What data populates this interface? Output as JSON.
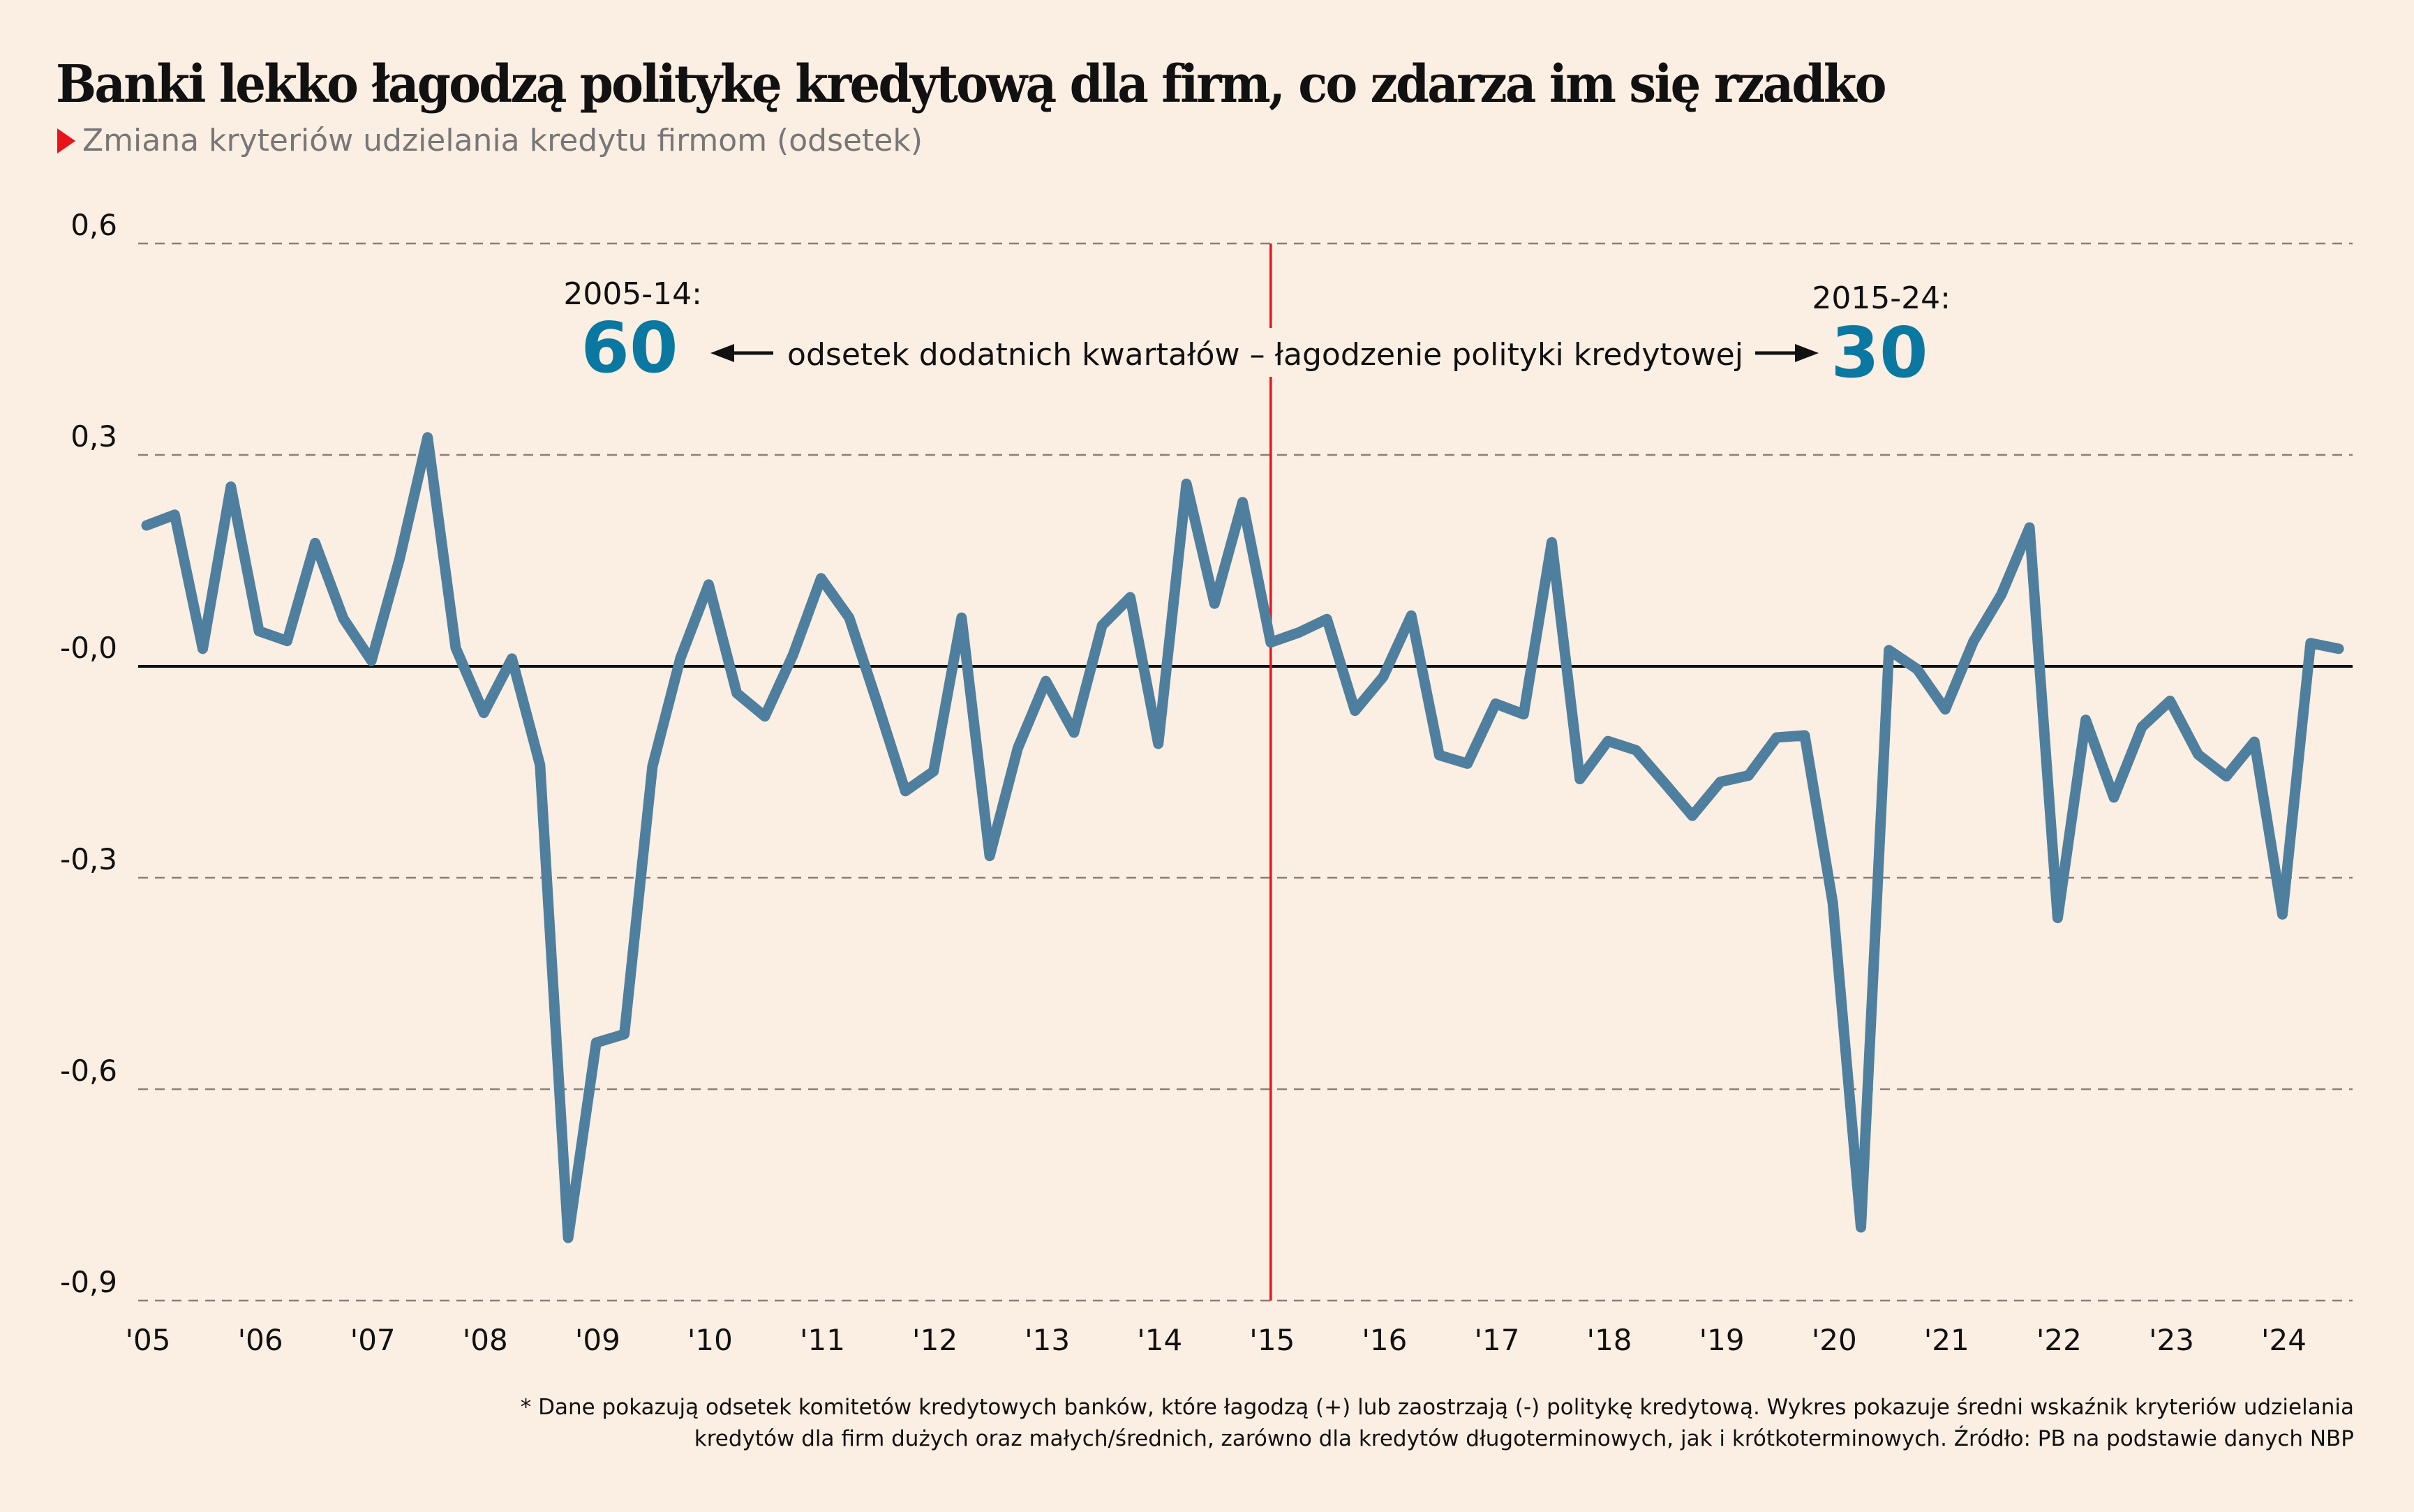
{
  "header": {
    "title": "Banki lekko łagodzą politykę kredytową dla firm, co zdarza im się rzadko",
    "subtitle": "Zmiana kryteriów udzielania kredytu firmom (odsetek)",
    "subtitle_marker_icon": "red-triangle-icon"
  },
  "annotations": {
    "left_period": "2005-14:",
    "left_value": "60",
    "right_period": "2015-24:",
    "right_value": "30",
    "middle_text": "odsetek dodatnich kwartałów – łagodzenie polityki kredytowej",
    "left_arrow_icon": "arrow-left-icon",
    "right_arrow_icon": "arrow-right-icon",
    "divider_at": "'15"
  },
  "footnote": {
    "line1": "* Dane pokazują odsetek komitetów kredytowych banków, które łagodzą (+) lub zaostrzają (-) politykę kredytową. Wykres pokazuje średni wskaźnik kryteriów udzielania",
    "line2": "kredytów dla firm dużych oraz małych/średnich, zarówno dla kredytów długoterminowych, jak i krótkoterminowych. Źródło: PB na podstawie danych NBP"
  },
  "colors": {
    "background": "#fbeee2",
    "line": "#4f7f9e",
    "accent_number": "#0a78a0",
    "divider": "#e8141a",
    "zero_line": "#111111",
    "grid": "#8a7f77"
  },
  "chart_data": {
    "type": "line",
    "title": "Banki lekko łagodzą politykę kredytową dla firm, co zdarza im się rzadko",
    "subtitle": "Zmiana kryteriów udzielania kredytu firmom (odsetek)",
    "xlabel": "",
    "ylabel": "",
    "frequency": "quarterly",
    "x_start": "2005 Q1",
    "x_end": "2024 Q3",
    "ylim": [
      -0.9,
      0.6
    ],
    "yticks": [
      0.6,
      0.3,
      0.0,
      -0.3,
      -0.6,
      -0.9
    ],
    "ytick_labels": [
      "0,6",
      "0,3",
      "-0,0",
      "-0,3",
      "-0,6",
      "-0,9"
    ],
    "xtick_labels": [
      "'05",
      "'06",
      "'07",
      "'08",
      "'09",
      "'10",
      "'11",
      "'12",
      "'13",
      "'14",
      "'15",
      "'16",
      "'17",
      "'18",
      "'19",
      "'20",
      "'21",
      "'22",
      "'23",
      "'24"
    ],
    "grid": "horizontal dashed",
    "legend": "none",
    "series": [
      {
        "name": "Zmiana kryteriów udzielania kredytu firmom",
        "values": [
          0.2,
          0.215,
          0.025,
          0.255,
          0.05,
          0.036,
          0.175,
          0.068,
          0.008,
          0.152,
          0.325,
          0.026,
          -0.066,
          0.011,
          -0.14,
          -0.811,
          -0.534,
          -0.522,
          -0.142,
          0.012,
          0.116,
          -0.038,
          -0.071,
          0.016,
          0.125,
          0.069,
          -0.052,
          -0.177,
          -0.149,
          0.069,
          -0.269,
          -0.116,
          -0.021,
          -0.094,
          0.058,
          0.098,
          -0.11,
          0.259,
          0.089,
          0.233,
          0.034,
          0.048,
          0.067,
          -0.063,
          -0.015,
          0.072,
          -0.126,
          -0.138,
          -0.053,
          -0.068,
          0.176,
          -0.16,
          -0.106,
          -0.119,
          -0.165,
          -0.212,
          -0.164,
          -0.155,
          -0.101,
          -0.098,
          -0.336,
          -0.796,
          0.023,
          -0.004,
          -0.061,
          0.035,
          0.102,
          0.197,
          -0.357,
          -0.076,
          -0.186,
          -0.086,
          -0.049,
          -0.125,
          -0.156,
          -0.107,
          -0.352,
          0.033,
          0.025
        ]
      }
    ],
    "annotations": [
      {
        "text": "2005-14: 60",
        "position": "upper-left of divider"
      },
      {
        "text": "2015-24: 30",
        "position": "upper-right of divider"
      },
      {
        "text": "odsetek dodatnich kwartałów – łagodzenie polityki kredytowej",
        "position": "top-center"
      }
    ],
    "vertical_marker": "2015 Q1"
  }
}
